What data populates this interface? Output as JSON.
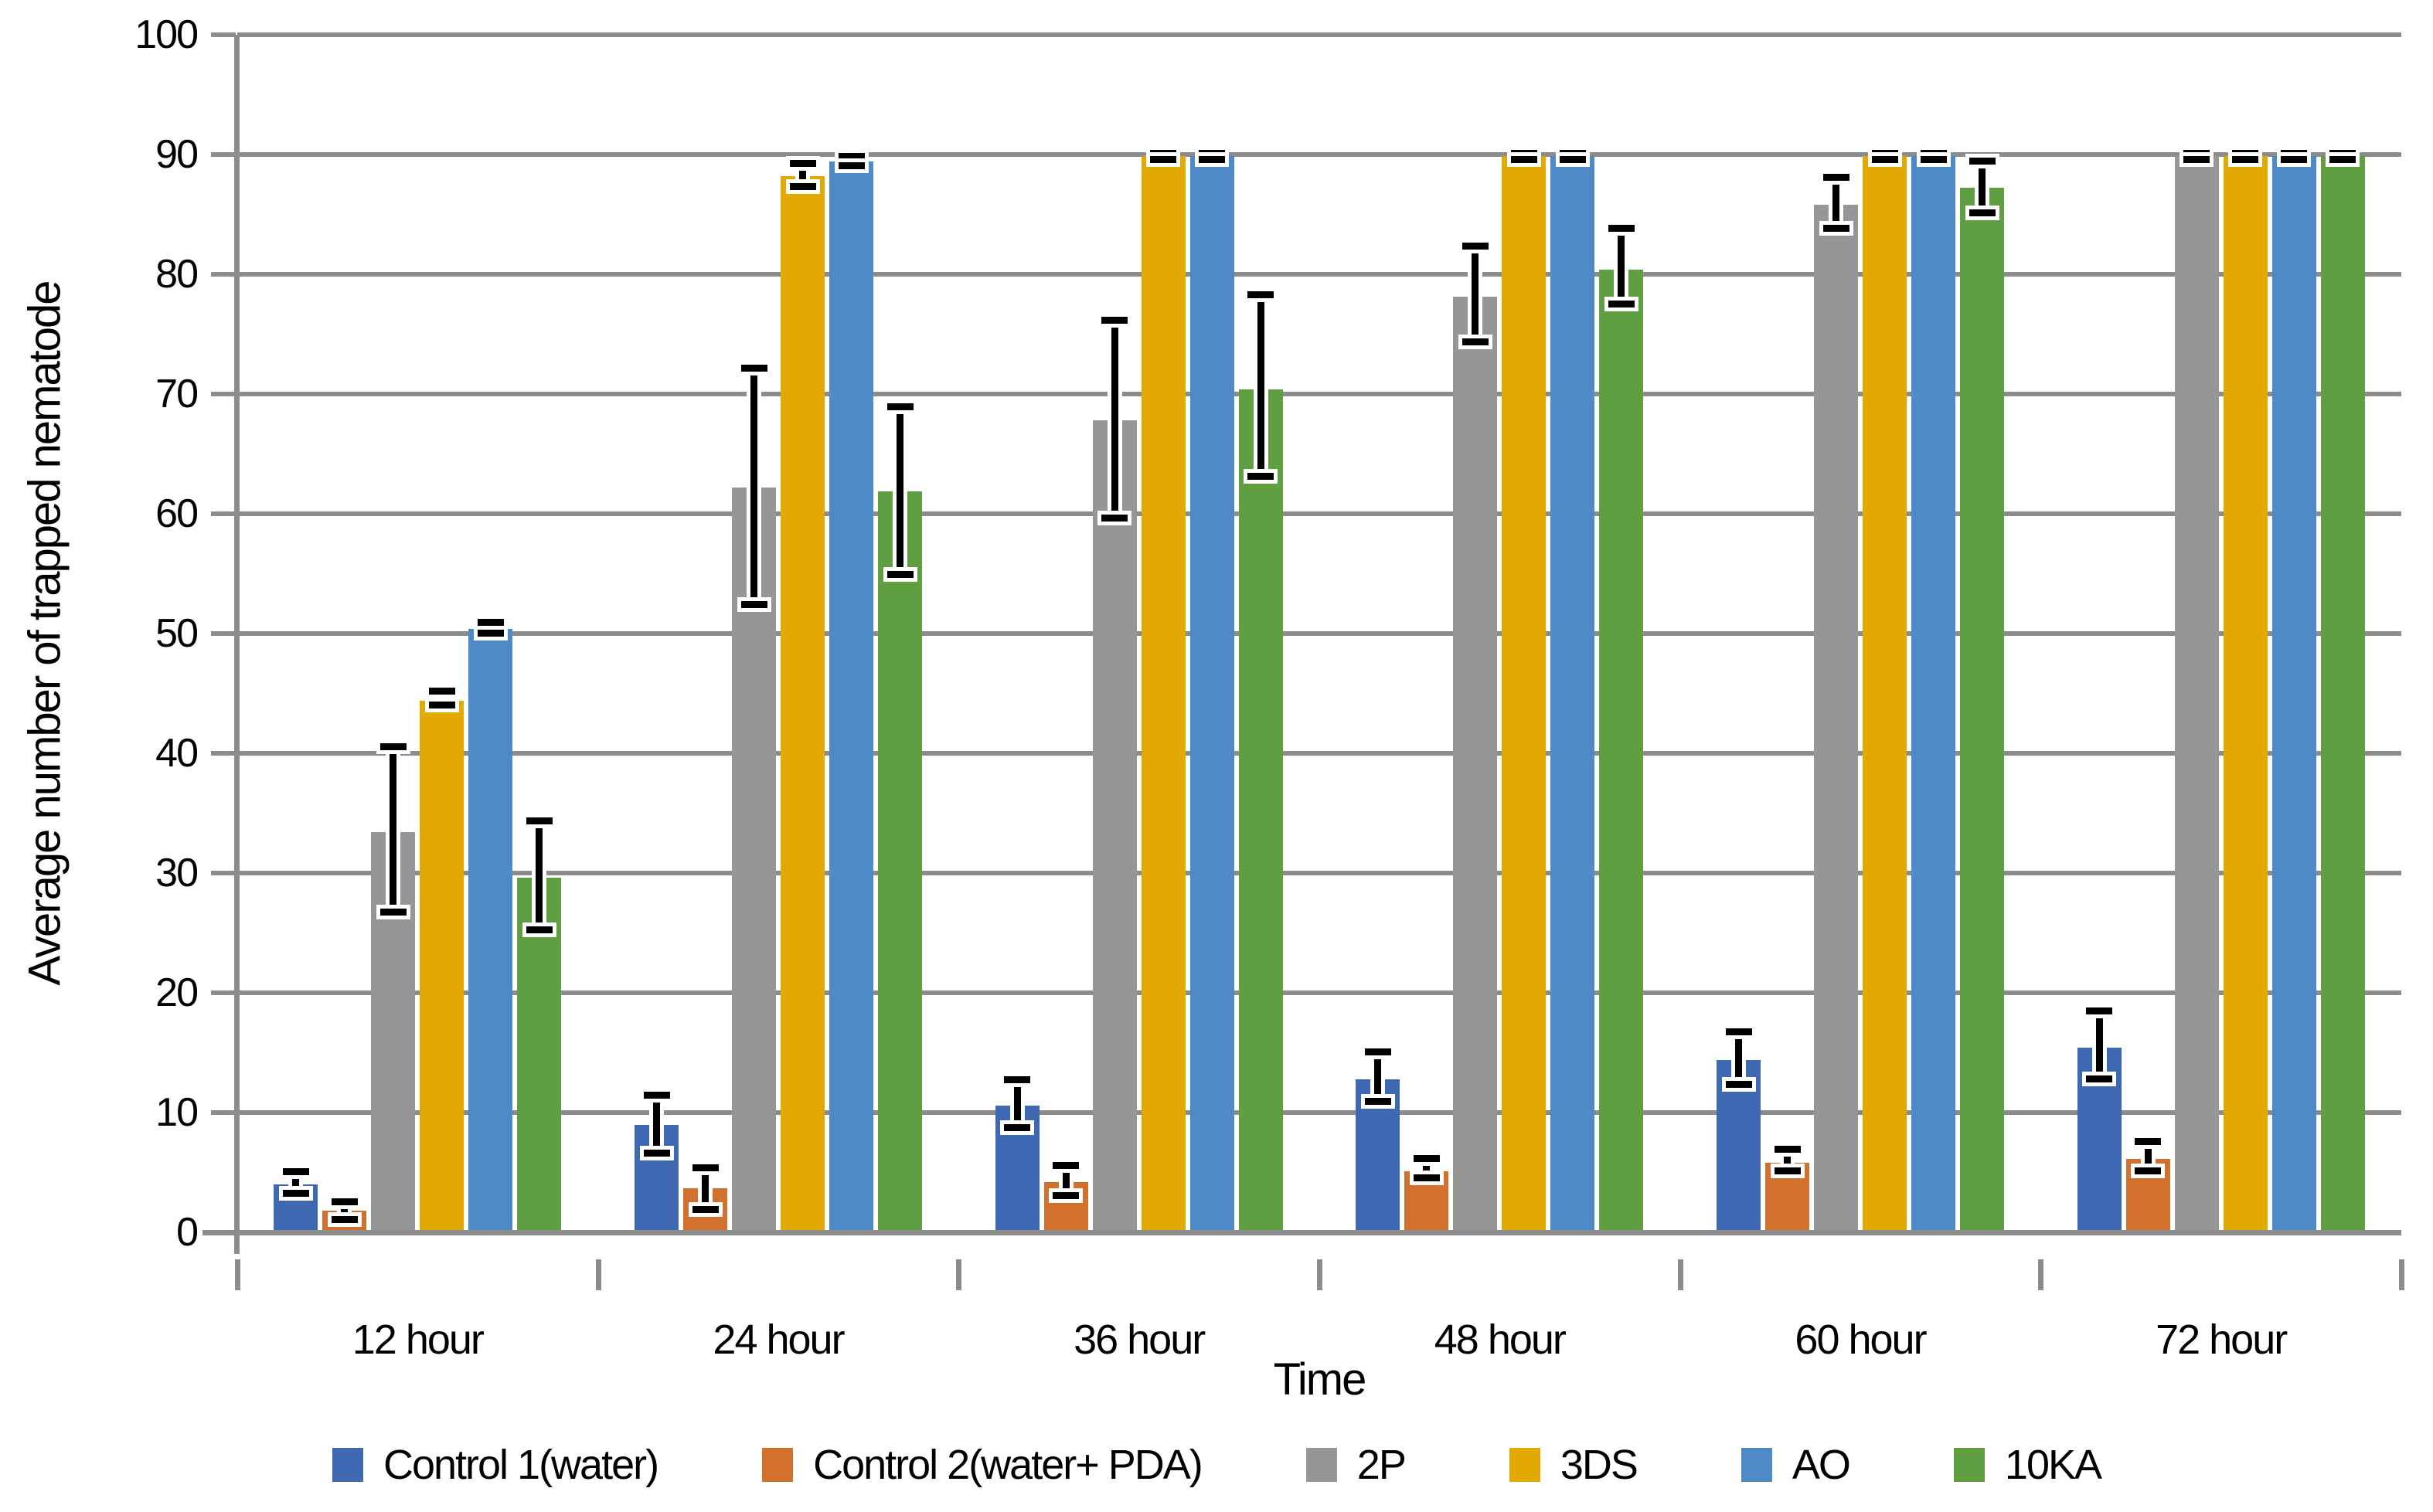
{
  "figure": {
    "background_color": "#ffffff",
    "axis_color": "#8C8C8C",
    "error_bar_color": "#000000",
    "text_color": "#000000"
  },
  "chart_data": {
    "type": "bar",
    "title": "",
    "xlabel": "Time",
    "ylabel": "Average number of trapped nematode",
    "ylim": [
      0,
      100
    ],
    "ytick_step": 10,
    "grid": true,
    "legend_position": "bottom",
    "error_bars": true,
    "categories": [
      "12 hour",
      "24 hour",
      "36 hour",
      "48 hour",
      "60 hour",
      "72 hour"
    ],
    "series": [
      {
        "name": "Control 1(water)",
        "color": "#3E68B1",
        "values": [
          4.0,
          9.0,
          10.6,
          12.8,
          14.4,
          15.4
        ],
        "err_low": [
          3.2,
          6.6,
          8.7,
          10.9,
          12.3,
          12.8
        ],
        "err_high": [
          5.1,
          11.5,
          12.8,
          15.1,
          16.8,
          18.5
        ]
      },
      {
        "name": "Control 2(water+ PDA)",
        "color": "#D2702D",
        "values": [
          1.8,
          3.7,
          4.2,
          5.1,
          5.8,
          6.1
        ],
        "err_low": [
          1.0,
          1.9,
          3.0,
          4.5,
          5.1,
          5.1
        ],
        "err_high": [
          2.6,
          5.4,
          5.6,
          6.2,
          7.0,
          7.6
        ]
      },
      {
        "name": "2P",
        "color": "#969696",
        "values": [
          33.4,
          62.2,
          67.8,
          78.1,
          85.8,
          89.9
        ],
        "err_low": [
          26.7,
          52.4,
          59.6,
          74.3,
          83.8,
          89.6
        ],
        "err_high": [
          40.6,
          72.2,
          76.2,
          82.4,
          88.1,
          90.1
        ]
      },
      {
        "name": "3DS",
        "color": "#E2A902",
        "values": [
          44.4,
          88.2,
          89.9,
          89.9,
          89.9,
          89.9
        ],
        "err_low": [
          44.0,
          87.3,
          89.6,
          89.6,
          89.6,
          89.6
        ],
        "err_high": [
          45.2,
          89.3,
          90.1,
          90.1,
          90.1,
          90.1
        ]
      },
      {
        "name": "AO",
        "color": "#4E8AC7",
        "values": [
          50.4,
          89.4,
          89.9,
          89.9,
          89.9,
          89.9
        ],
        "err_low": [
          50.0,
          89.0,
          89.6,
          89.6,
          89.6,
          89.6
        ],
        "err_high": [
          51.0,
          89.9,
          90.1,
          90.1,
          90.1,
          90.1
        ]
      },
      {
        "name": "10KA",
        "color": "#5F9E41",
        "values": [
          29.6,
          61.9,
          70.4,
          80.4,
          87.2,
          89.9
        ],
        "err_low": [
          25.2,
          54.9,
          63.1,
          77.5,
          85.1,
          89.6
        ],
        "err_high": [
          34.4,
          69.0,
          78.3,
          83.9,
          89.5,
          90.1
        ]
      }
    ]
  }
}
